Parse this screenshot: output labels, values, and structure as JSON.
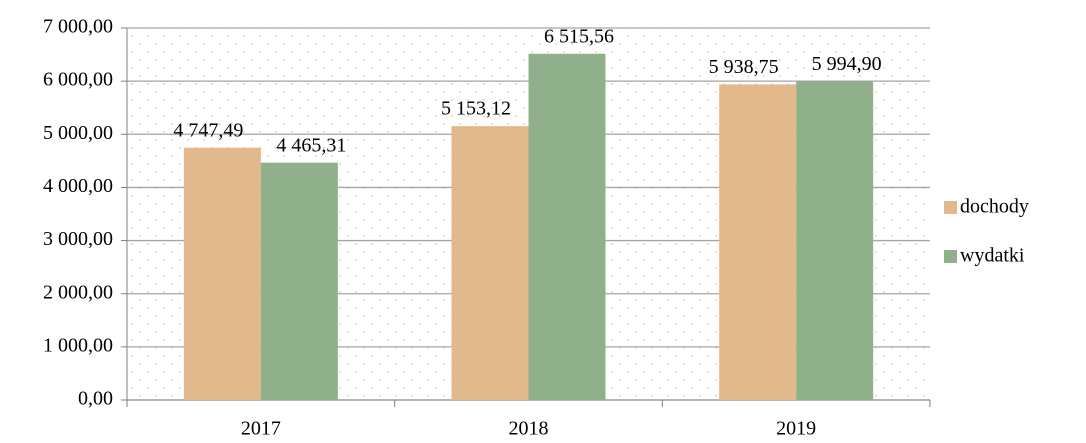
{
  "chart_data": {
    "type": "bar",
    "categories": [
      "2017",
      "2018",
      "2019"
    ],
    "series": [
      {
        "name": "dochody",
        "color": "#e2b98c",
        "values": [
          4747.49,
          5153.12,
          5938.75
        ],
        "value_labels": [
          "4 747,49",
          "5 153,12",
          "5 938,75"
        ]
      },
      {
        "name": "wydatki",
        "color": "#8fb08a",
        "values": [
          4465.31,
          6515.56,
          5994.9
        ],
        "value_labels": [
          "4 465,31",
          "6 515,56",
          "5 994,90"
        ]
      }
    ],
    "ylim": [
      0,
      7000
    ],
    "yticks": [
      {
        "value": 0,
        "label": "0,00"
      },
      {
        "value": 1000,
        "label": "1 000,00"
      },
      {
        "value": 2000,
        "label": "2 000,00"
      },
      {
        "value": 3000,
        "label": "3 000,00"
      },
      {
        "value": 4000,
        "label": "4 000,00"
      },
      {
        "value": 5000,
        "label": "5 000,00"
      },
      {
        "value": 6000,
        "label": "6 000,00"
      },
      {
        "value": 7000,
        "label": "7 000,00"
      }
    ],
    "grid": true,
    "legend": "right"
  }
}
